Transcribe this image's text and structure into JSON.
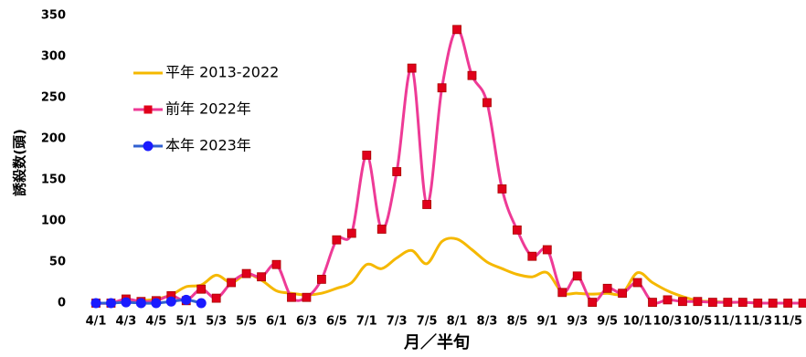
{
  "chart_data": {
    "type": "line",
    "x_label": "月／半旬",
    "y_label": "誘殺数(頭)",
    "categories": [
      "4/1",
      null,
      "4/3",
      null,
      "4/5",
      null,
      "5/1",
      null,
      "5/3",
      null,
      "5/5",
      null,
      "6/1",
      null,
      "6/3",
      null,
      "6/5",
      null,
      "7/1",
      null,
      "7/3",
      null,
      "7/5",
      null,
      "8/1",
      null,
      "8/3",
      null,
      "8/5",
      null,
      "9/1",
      null,
      "9/3",
      null,
      "9/5",
      null,
      "10/1",
      null,
      "10/3",
      null,
      "10/5",
      null,
      "11/1",
      null,
      "11/3",
      null,
      "11/5",
      null
    ],
    "series": [
      {
        "name": "平年 2013-2022",
        "color": "#f5b800",
        "marker": "none",
        "values": [
          0,
          0,
          2,
          3,
          5,
          10,
          20,
          22,
          34,
          25,
          35,
          28,
          15,
          12,
          10,
          12,
          18,
          25,
          47,
          42,
          55,
          64,
          48,
          75,
          78,
          65,
          50,
          42,
          35,
          32,
          37,
          13,
          12,
          11,
          12,
          12,
          37,
          25,
          15,
          8,
          3,
          2,
          1,
          1,
          0,
          0,
          0,
          0
        ]
      },
      {
        "name": "前年 2022年",
        "color": "#ee3a96",
        "marker": "square",
        "marker_color": "#e0001a",
        "values": [
          0,
          0,
          5,
          2,
          3,
          9,
          3,
          17,
          6,
          25,
          36,
          32,
          47,
          7,
          7,
          29,
          77,
          85,
          180,
          90,
          160,
          286,
          120,
          262,
          333,
          277,
          244,
          139,
          89,
          57,
          65,
          13,
          33,
          1,
          18,
          12,
          25,
          1,
          4,
          2,
          2,
          1,
          1,
          1,
          0,
          0,
          0,
          0
        ]
      },
      {
        "name": "本年 2023年",
        "color": "#3060d0",
        "marker": "circle",
        "marker_color": "#1a1aff",
        "values": [
          0,
          0,
          1,
          0,
          0,
          2,
          4,
          0,
          null,
          null,
          null,
          null,
          null,
          null,
          null,
          null,
          null,
          null,
          null,
          null,
          null,
          null,
          null,
          null,
          null,
          null,
          null,
          null,
          null,
          null,
          null,
          null,
          null,
          null,
          null,
          null,
          null,
          null,
          null,
          null,
          null,
          null,
          null,
          null,
          null,
          null,
          null,
          null
        ]
      }
    ],
    "ylim": [
      0,
      350
    ],
    "yticks": [
      0,
      50,
      100,
      150,
      200,
      250,
      300,
      350
    ]
  }
}
